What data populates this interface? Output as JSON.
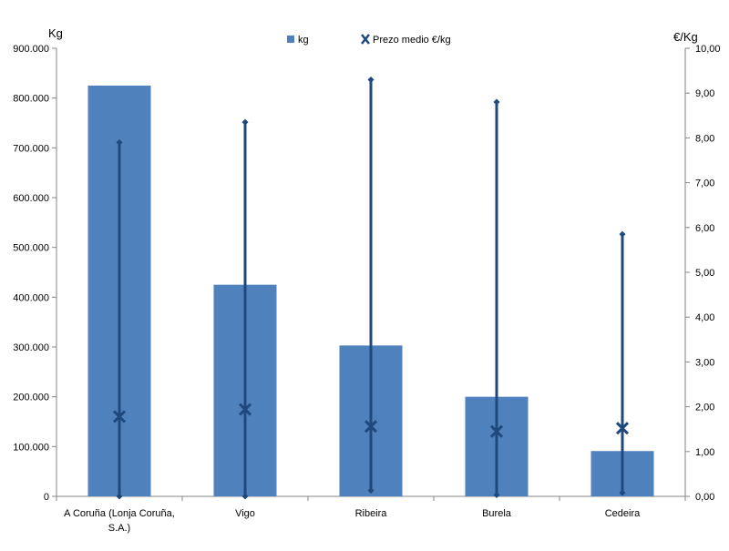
{
  "chart_data": {
    "type": "bar",
    "categories": [
      "A Coruña (Lonja Coruña, S.A.)",
      "Vigo",
      "Ribeira",
      "Burela",
      "Cedeira"
    ],
    "category_lines": [
      [
        "A Coruña (Lonja Coruña,",
        "S.A.)"
      ],
      [
        "Vigo"
      ],
      [
        "Ribeira"
      ],
      [
        "Burela"
      ],
      [
        "Cedeira"
      ]
    ],
    "series": [
      {
        "name": "kg",
        "type": "bar",
        "axis": "left",
        "color": "#4f81bd",
        "values": [
          825000,
          425000,
          303000,
          200000,
          91000
        ]
      },
      {
        "name": "Prezo medio €/kg",
        "type": "x-marker",
        "axis": "right",
        "color": "#1f497d",
        "values": [
          1.78,
          1.94,
          1.56,
          1.45,
          1.52
        ]
      }
    ],
    "ranges": {
      "name": "min-max",
      "axis": "right",
      "color": "#1f497d",
      "low": [
        0.0,
        0.0,
        0.13,
        0.03,
        0.08
      ],
      "high": [
        7.9,
        8.35,
        9.3,
        8.8,
        5.85
      ]
    },
    "y_left": {
      "label": "Kg",
      "min": 0,
      "max": 900000,
      "step": 100000,
      "ticks": [
        "0",
        "100.000",
        "200.000",
        "300.000",
        "400.000",
        "500.000",
        "600.000",
        "700.000",
        "800.000",
        "900.000"
      ]
    },
    "y_right": {
      "label": "€/Kg",
      "min": 0,
      "max": 10,
      "step": 1,
      "ticks": [
        "0,00",
        "1,00",
        "2,00",
        "3,00",
        "4,00",
        "5,00",
        "6,00",
        "7,00",
        "8,00",
        "9,00",
        "10,00"
      ]
    },
    "legend": {
      "position": "top",
      "items": [
        "kg",
        "Prezo medio €/kg"
      ]
    },
    "grid": false
  }
}
